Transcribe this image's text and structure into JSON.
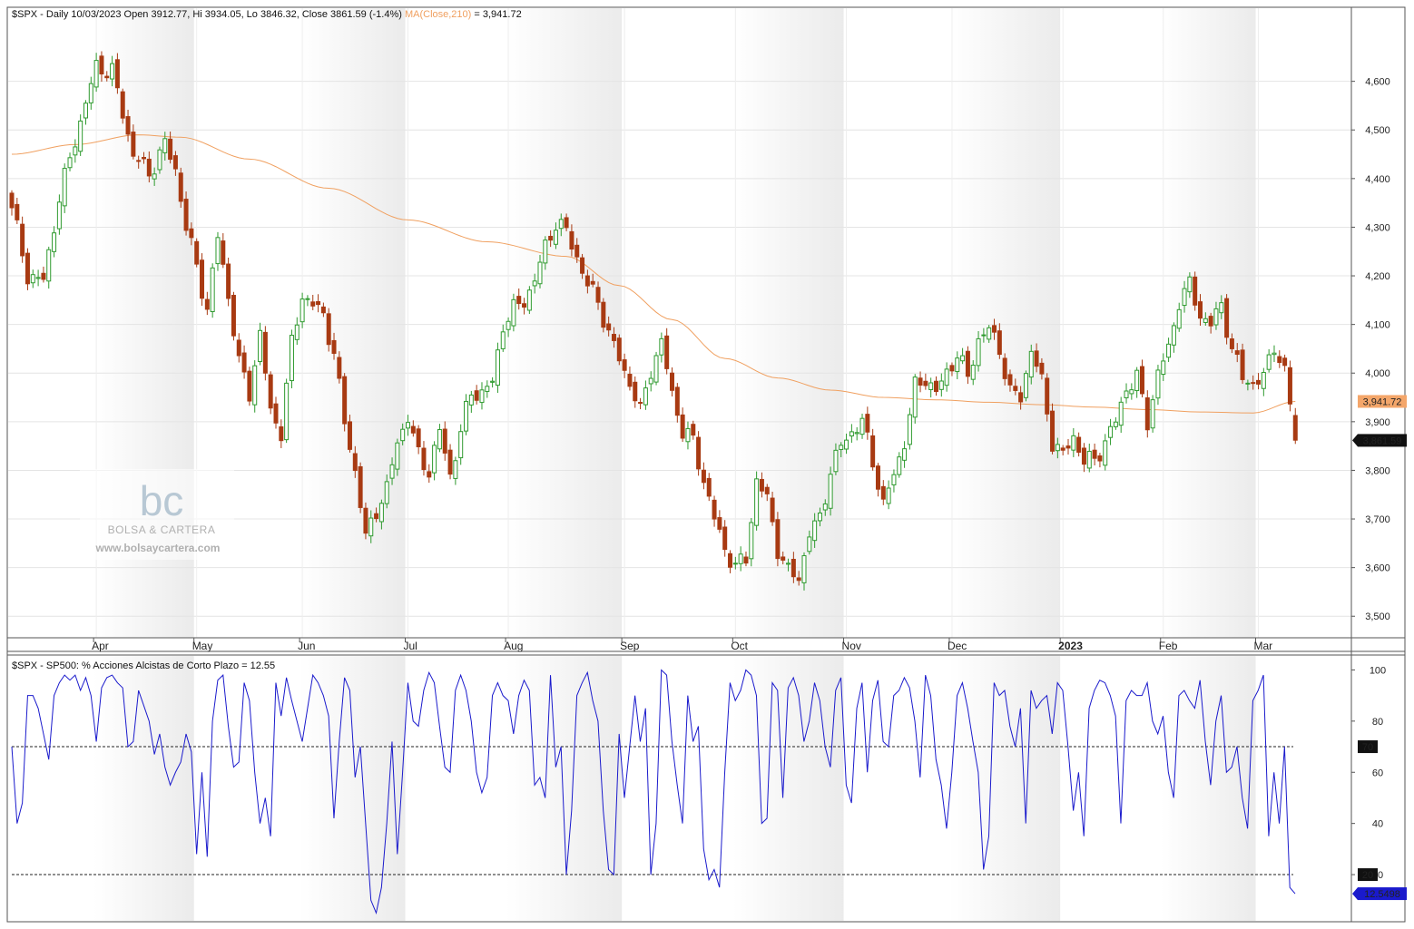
{
  "chart_data": [
    {
      "type": "candlestick",
      "symbol": "$SPX",
      "header": {
        "prefix": "$SPX - Daily 10/03/2023 Open 3912.77, Hi 3934.05, Lo 3846.32, Close 3861.59 (-1.4%)",
        "ma_label": "MA(Close,210)",
        "ma_value": " = 3,941.72"
      },
      "y_ticks": [
        "3,500",
        "3,600",
        "3,700",
        "3,800",
        "3,900",
        "4,000",
        "4,100",
        "4,200",
        "4,300",
        "4,400",
        "4,500",
        "4,600"
      ],
      "y_tick_values": [
        3500,
        3600,
        3700,
        3800,
        3900,
        4000,
        4100,
        4200,
        4300,
        4400,
        4500,
        4600
      ],
      "ylim": [
        3465,
        4715
      ],
      "x_labels": [
        "Apr",
        "May",
        "Jun",
        "Jul",
        "Aug",
        "Sep",
        "Oct",
        "Nov",
        "Dec",
        "2023",
        "Feb",
        "Mar"
      ],
      "x_label_index": [
        16,
        35,
        55,
        75,
        94,
        116,
        137,
        158,
        178,
        199,
        218,
        236
      ],
      "ma_label_box": "3,941.72",
      "close_label_box": "3,861.59",
      "ma_color": "#f0a060",
      "up_color": "#2e9a2e",
      "down_color": "#a83a12",
      "anchors": [
        [
          0,
          4340
        ],
        [
          3,
          4200
        ],
        [
          6,
          4190
        ],
        [
          9,
          4360
        ],
        [
          12,
          4480
        ],
        [
          16,
          4630
        ],
        [
          19,
          4620
        ],
        [
          23,
          4450
        ],
        [
          26,
          4410
        ],
        [
          29,
          4470
        ],
        [
          31,
          4420
        ],
        [
          33,
          4300
        ],
        [
          35,
          4220
        ],
        [
          37,
          4130
        ],
        [
          39,
          4280
        ],
        [
          41,
          4160
        ],
        [
          43,
          4020
        ],
        [
          45,
          3960
        ],
        [
          47,
          4080
        ],
        [
          49,
          3920
        ],
        [
          51,
          3880
        ],
        [
          53,
          4060
        ],
        [
          55,
          4160
        ],
        [
          57,
          4140
        ],
        [
          59,
          4120
        ],
        [
          61,
          4040
        ],
        [
          63,
          3900
        ],
        [
          65,
          3800
        ],
        [
          67,
          3660
        ],
        [
          69,
          3720
        ],
        [
          71,
          3760
        ],
        [
          73,
          3860
        ],
        [
          75,
          3910
        ],
        [
          77,
          3830
        ],
        [
          79,
          3800
        ],
        [
          81,
          3880
        ],
        [
          83,
          3790
        ],
        [
          85,
          3880
        ],
        [
          87,
          3960
        ],
        [
          89,
          3960
        ],
        [
          91,
          3980
        ],
        [
          93,
          4100
        ],
        [
          95,
          4130
        ],
        [
          97,
          4150
        ],
        [
          99,
          4190
        ],
        [
          101,
          4260
        ],
        [
          103,
          4310
        ],
        [
          105,
          4290
        ],
        [
          107,
          4240
        ],
        [
          109,
          4180
        ],
        [
          111,
          4150
        ],
        [
          113,
          4080
        ],
        [
          115,
          4030
        ],
        [
          117,
          3980
        ],
        [
          119,
          3920
        ],
        [
          121,
          4010
        ],
        [
          123,
          4060
        ],
        [
          125,
          3960
        ],
        [
          127,
          3880
        ],
        [
          129,
          3860
        ],
        [
          131,
          3780
        ],
        [
          133,
          3700
        ],
        [
          135,
          3640
        ],
        [
          137,
          3600
        ],
        [
          139,
          3620
        ],
        [
          141,
          3780
        ],
        [
          143,
          3740
        ],
        [
          145,
          3640
        ],
        [
          147,
          3590
        ],
        [
          149,
          3580
        ],
        [
          151,
          3670
        ],
        [
          153,
          3700
        ],
        [
          155,
          3800
        ],
        [
          157,
          3850
        ],
        [
          159,
          3880
        ],
        [
          161,
          3900
        ],
        [
          163,
          3820
        ],
        [
          165,
          3730
        ],
        [
          167,
          3790
        ],
        [
          169,
          3860
        ],
        [
          171,
          3970
        ],
        [
          173,
          3990
        ],
        [
          175,
          3960
        ],
        [
          177,
          4000
        ],
        [
          179,
          4040
        ],
        [
          181,
          3990
        ],
        [
          183,
          4070
        ],
        [
          185,
          4090
        ],
        [
          187,
          4050
        ],
        [
          189,
          3960
        ],
        [
          191,
          3950
        ],
        [
          193,
          4050
        ],
        [
          195,
          3980
        ],
        [
          197,
          3860
        ],
        [
          199,
          3830
        ],
        [
          201,
          3870
        ],
        [
          203,
          3820
        ],
        [
          205,
          3820
        ],
        [
          207,
          3860
        ],
        [
          209,
          3900
        ],
        [
          211,
          3970
        ],
        [
          213,
          3990
        ],
        [
          215,
          3900
        ],
        [
          217,
          4000
        ],
        [
          219,
          4050
        ],
        [
          221,
          4150
        ],
        [
          223,
          4180
        ],
        [
          225,
          4120
        ],
        [
          227,
          4100
        ],
        [
          229,
          4140
        ],
        [
          231,
          4050
        ],
        [
          233,
          3990
        ],
        [
          235,
          3980
        ],
        [
          237,
          3990
        ],
        [
          239,
          4060
        ],
        [
          241,
          4000
        ],
        [
          242,
          3935
        ],
        [
          243,
          3862
        ]
      ],
      "ma_anchors": [
        [
          0,
          4450
        ],
        [
          12,
          4470
        ],
        [
          24,
          4490
        ],
        [
          32,
          4485
        ],
        [
          45,
          4440
        ],
        [
          60,
          4380
        ],
        [
          75,
          4315
        ],
        [
          90,
          4270
        ],
        [
          105,
          4240
        ],
        [
          115,
          4180
        ],
        [
          125,
          4110
        ],
        [
          135,
          4030
        ],
        [
          145,
          3990
        ],
        [
          155,
          3965
        ],
        [
          165,
          3950
        ],
        [
          175,
          3945
        ],
        [
          185,
          3940
        ],
        [
          195,
          3935
        ],
        [
          205,
          3930
        ],
        [
          215,
          3925
        ],
        [
          225,
          3920
        ],
        [
          235,
          3918
        ],
        [
          243,
          3941.72
        ]
      ]
    },
    {
      "type": "line",
      "header": "$SPX - SP500: % Acciones Alcistas de Corto Plazo = 12.55",
      "y_ticks": [
        "20",
        "40",
        "60",
        "80",
        "100"
      ],
      "y_tick_values": [
        20,
        40,
        60,
        80,
        100
      ],
      "ylim": [
        3,
        103
      ],
      "ref_lines": [
        70,
        20
      ],
      "ref_labels": [
        "70",
        "20"
      ],
      "last_label": "12.5498",
      "color": "#1a1acc",
      "values": [
        70,
        40,
        48,
        90,
        90,
        85,
        75,
        65,
        90,
        95,
        98,
        96,
        98,
        92,
        97,
        90,
        72,
        93,
        97,
        98,
        95,
        93,
        70,
        72,
        92,
        86,
        80,
        67,
        75,
        62,
        55,
        60,
        64,
        75,
        68,
        28,
        60,
        27,
        80,
        96,
        98,
        78,
        62,
        64,
        95,
        88,
        60,
        40,
        50,
        35,
        95,
        82,
        97,
        88,
        80,
        72,
        85,
        98,
        95,
        90,
        82,
        42,
        72,
        97,
        92,
        58,
        70,
        40,
        10,
        5,
        15,
        40,
        72,
        28,
        60,
        95,
        80,
        78,
        92,
        99,
        95,
        78,
        62,
        60,
        92,
        98,
        92,
        80,
        60,
        52,
        58,
        90,
        95,
        90,
        88,
        75,
        90,
        96,
        92,
        55,
        58,
        50,
        98,
        62,
        70,
        20,
        45,
        90,
        95,
        99,
        88,
        80,
        45,
        22,
        20,
        75,
        50,
        70,
        90,
        72,
        85,
        20,
        40,
        100,
        98,
        72,
        55,
        40,
        90,
        72,
        78,
        30,
        18,
        22,
        15,
        60,
        95,
        88,
        92,
        100,
        98,
        90,
        40,
        42,
        95,
        92,
        50,
        93,
        97,
        90,
        72,
        80,
        95,
        88,
        70,
        62,
        92,
        97,
        55,
        48,
        85,
        95,
        60,
        88,
        96,
        72,
        70,
        90,
        92,
        97,
        93,
        80,
        58,
        98,
        90,
        65,
        55,
        38,
        60,
        90,
        95,
        85,
        72,
        60,
        22,
        35,
        95,
        90,
        92,
        78,
        70,
        85,
        40,
        92,
        85,
        88,
        90,
        75,
        95,
        92,
        70,
        45,
        60,
        35,
        85,
        92,
        96,
        95,
        90,
        82,
        40,
        88,
        92,
        90,
        90,
        95,
        80,
        75,
        82,
        60,
        50,
        90,
        92,
        88,
        85,
        96,
        72,
        55,
        80,
        90,
        60,
        62,
        70,
        50,
        38,
        88,
        92,
        98,
        35,
        60,
        40,
        70,
        15,
        12.55
      ]
    }
  ],
  "watermark": {
    "name": "BOLSA & CARTERA",
    "url": "www.bolsaycartera.com",
    "logo_text": "bc"
  }
}
